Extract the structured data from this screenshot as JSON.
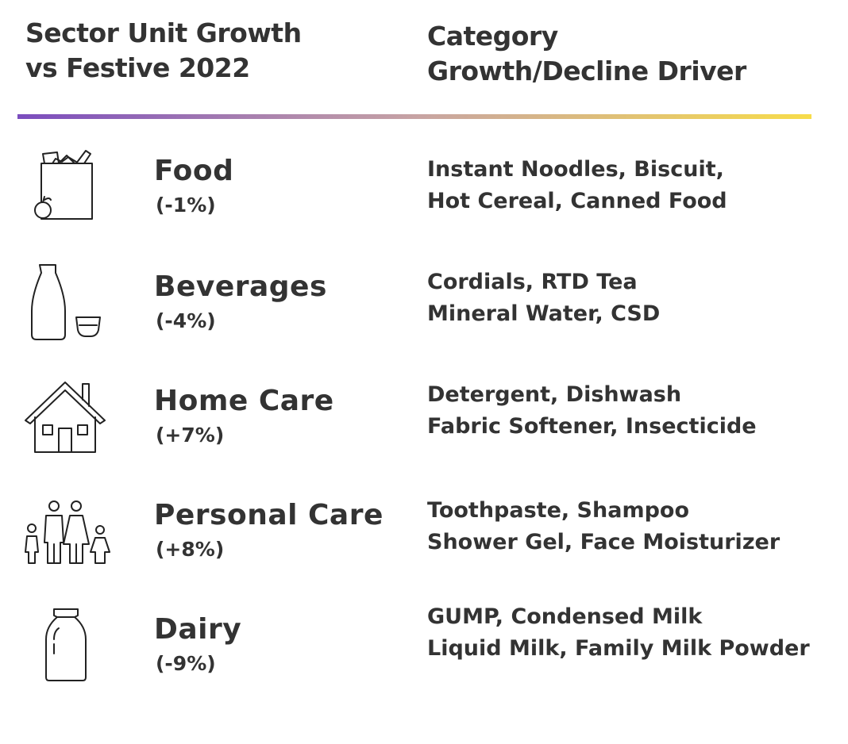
{
  "header": {
    "left_title": [
      "Sector Unit Growth",
      "vs Festive 2022"
    ],
    "right_title": [
      "Category",
      "Growth/Decline Driver"
    ]
  },
  "colors": {
    "text": "#333333",
    "gradient_start": "#7b4dbe",
    "gradient_mid": "#c7a3a4",
    "gradient_end": "#f7dc4a"
  },
  "sectors": [
    {
      "icon": "grocery-bag-icon",
      "name": "Food",
      "change": "(-1%)",
      "drivers": [
        "Instant Noodles, Biscuit,",
        "Hot Cereal, Canned Food"
      ]
    },
    {
      "icon": "bottle-and-cup-icon",
      "name": "Beverages",
      "change": "(-4%)",
      "drivers": [
        "Cordials, RTD Tea",
        "Mineral Water, CSD"
      ]
    },
    {
      "icon": "house-icon",
      "name": "Home Care",
      "change": "(+7%)",
      "drivers": [
        "Detergent, Dishwash",
        "Fabric Softener, Insecticide"
      ]
    },
    {
      "icon": "family-icon",
      "name": "Personal Care",
      "change": "(+8%)",
      "drivers": [
        "Toothpaste, Shampoo",
        "Shower Gel, Face Moisturizer"
      ]
    },
    {
      "icon": "milk-bottle-icon",
      "name": "Dairy",
      "change": "(-9%)",
      "drivers": [
        "GUMP, Condensed Milk",
        "Liquid Milk, Family Milk Powder"
      ]
    }
  ]
}
